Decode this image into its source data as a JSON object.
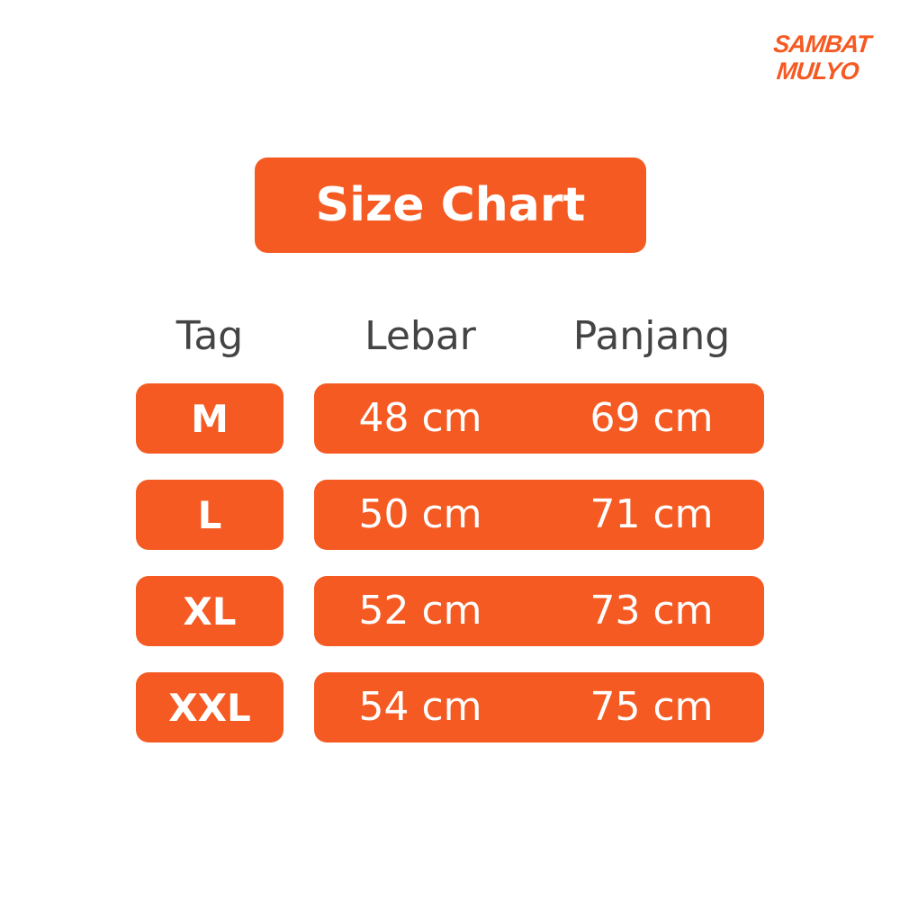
{
  "logo": {
    "line1": "SAMBAT",
    "line2": "MULYO"
  },
  "title": "Size Chart",
  "colors": {
    "accent": "#F55A22",
    "text": "#444444"
  },
  "headers": [
    "Tag",
    "Lebar",
    "Panjang"
  ],
  "rows": [
    {
      "tag": "M",
      "lebar": "48 cm",
      "panjang": "69 cm"
    },
    {
      "tag": "L",
      "lebar": "50 cm",
      "panjang": "71 cm"
    },
    {
      "tag": "XL",
      "lebar": "52 cm",
      "panjang": "73 cm"
    },
    {
      "tag": "XXL",
      "lebar": "54 cm",
      "panjang": "75 cm"
    }
  ]
}
